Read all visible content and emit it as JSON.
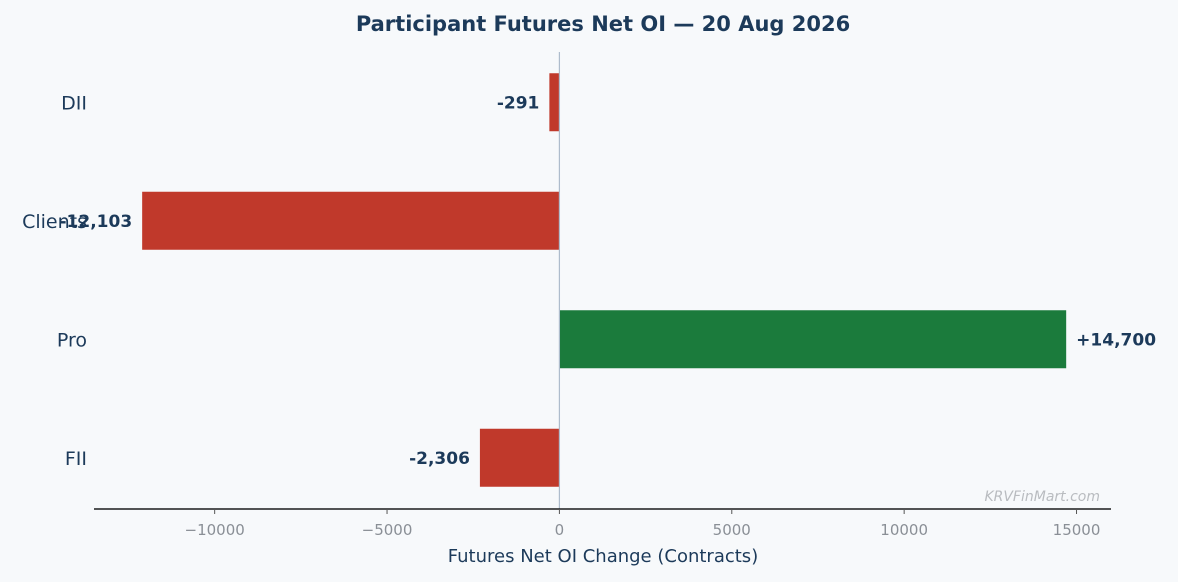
{
  "chart_data": {
    "type": "bar",
    "orientation": "horizontal",
    "title": "Participant Futures Net OI — 20 Aug 2026",
    "xlabel": "Futures Net OI Change (Contracts)",
    "ylabel": "",
    "categories": [
      "DII",
      "Clients",
      "Pro",
      "FII"
    ],
    "values": [
      -291,
      -12103,
      14700,
      -2306
    ],
    "data_labels": [
      "-291",
      "-12,103",
      "+14,700",
      "-2,306"
    ],
    "xlim": [
      -13500,
      16000
    ],
    "xticks": [
      -10000,
      -5000,
      0,
      5000,
      10000,
      15000
    ],
    "xtick_labels": [
      "−10000",
      "−5000",
      "0",
      "5000",
      "10000",
      "15000"
    ],
    "grid": false,
    "colors": {
      "positive": "#1b7b3c",
      "negative": "#c0392b",
      "zero_line": "#aebccc",
      "axis": "#1c1c1c"
    }
  },
  "watermark": "KRVFinMart.com"
}
